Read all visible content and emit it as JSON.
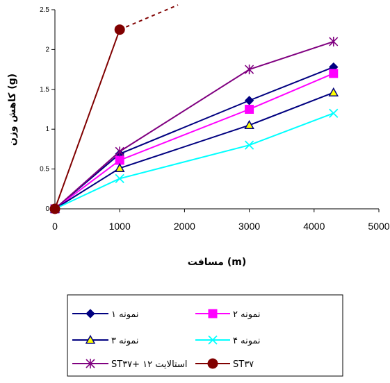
{
  "chart_data": {
    "type": "line",
    "xlabel": "مسافت (m)",
    "ylabel": "کاهش وزن (g)",
    "xlim": [
      0,
      5000
    ],
    "ylim": [
      0,
      2.5
    ],
    "x_ticks": [
      "0",
      "1000",
      "2000",
      "3000",
      "4000",
      "5000"
    ],
    "y_ticks": [
      "0",
      "0.5",
      "1",
      "1.5",
      "2",
      "2.5"
    ],
    "grid": false,
    "legend_position": "bottom",
    "series": [
      {
        "name": "نمونه ۱",
        "color": "#000080",
        "marker": "diamond",
        "x": [
          0,
          1000,
          3000,
          4300
        ],
        "y": [
          0,
          0.69,
          1.36,
          1.78
        ]
      },
      {
        "name": "نمونه ۲",
        "color": "#FF00FF",
        "marker": "square",
        "x": [
          0,
          1000,
          3000,
          4300
        ],
        "y": [
          0,
          0.61,
          1.25,
          1.7
        ]
      },
      {
        "name": "نمونه ۳",
        "color": "#000080",
        "marker": "triangle",
        "x": [
          0,
          1000,
          3000,
          4300
        ],
        "y": [
          0,
          0.51,
          1.05,
          1.46
        ]
      },
      {
        "name": "نمونه ۴",
        "color": "#00FFFF",
        "marker": "x",
        "x": [
          0,
          1000,
          3000,
          4300
        ],
        "y": [
          0,
          0.38,
          0.8,
          1.2
        ]
      },
      {
        "name": "ST۳۷+ ۱۲ استالایت",
        "color": "#800080",
        "marker": "asterisk",
        "x": [
          0,
          1000,
          3000,
          4300
        ],
        "y": [
          0,
          0.72,
          1.75,
          2.1
        ]
      },
      {
        "name": "ST۳۷",
        "color": "#800000",
        "marker": "circle",
        "x": [
          0,
          1000
        ],
        "y": [
          0,
          2.25
        ],
        "extension_x": [
          1000,
          1900
        ],
        "extension_y": [
          2.25,
          2.56
        ]
      }
    ]
  }
}
